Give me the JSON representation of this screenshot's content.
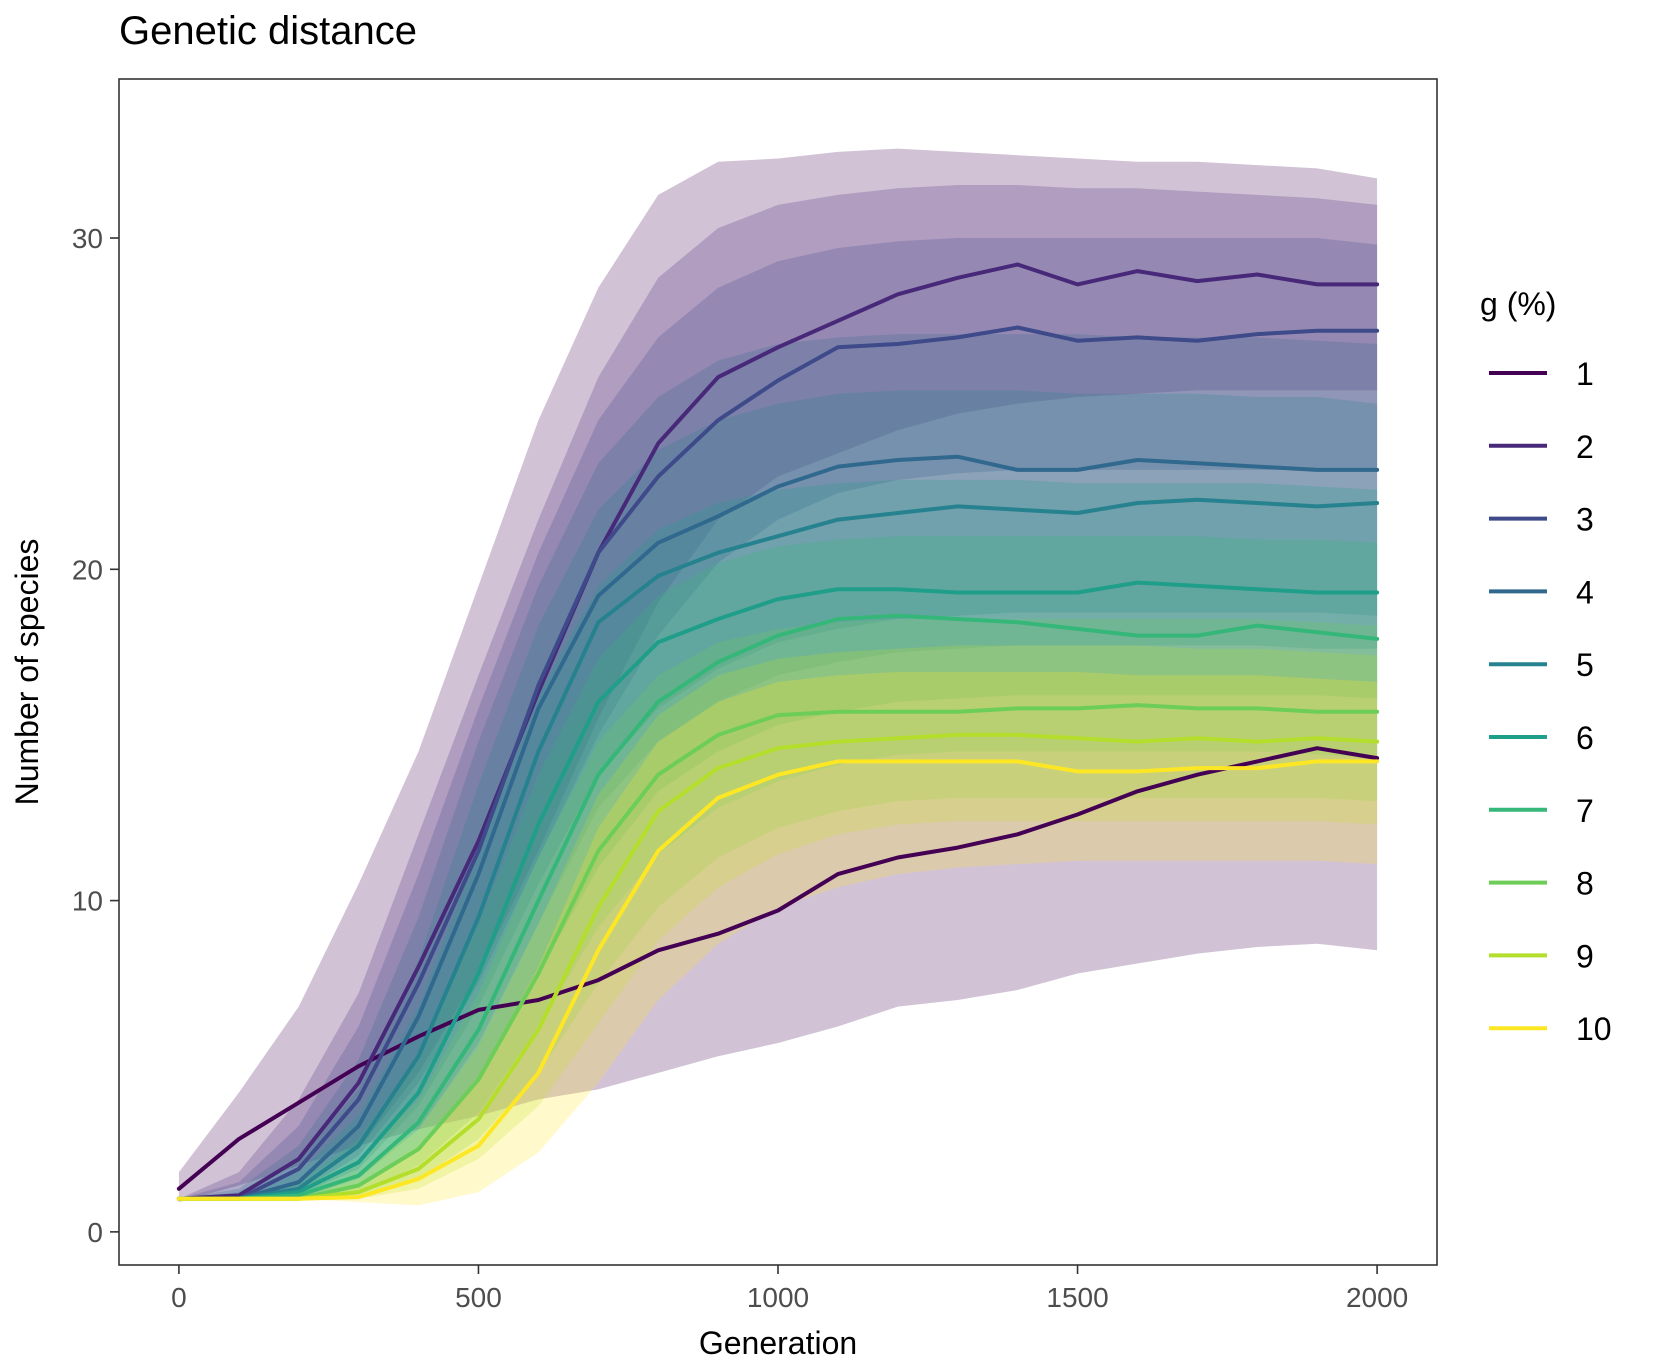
{
  "chart_data": {
    "type": "line",
    "title": "Genetic distance",
    "xlabel": "Generation",
    "ylabel": "Number of species",
    "xlim": [
      -100,
      2100
    ],
    "ylim": [
      -1,
      34.8
    ],
    "xticks": [
      0,
      500,
      1000,
      1500,
      2000
    ],
    "yticks": [
      0,
      10,
      20,
      30
    ],
    "legend": {
      "title": "g (%)",
      "position": "right"
    },
    "grid": false,
    "x": [
      0,
      100,
      200,
      300,
      400,
      500,
      600,
      700,
      800,
      900,
      1000,
      1100,
      1200,
      1300,
      1400,
      1500,
      1600,
      1700,
      1800,
      1900,
      2000
    ],
    "series": [
      {
        "name": "1",
        "color": "#440154",
        "values": [
          1.3,
          2.8,
          3.9,
          5.0,
          5.9,
          6.7,
          7.0,
          7.6,
          8.5,
          9.0,
          9.7,
          10.8,
          11.3,
          11.6,
          12.0,
          12.6,
          13.3,
          13.8,
          14.2,
          14.6,
          14.3
        ],
        "lower": [
          0.9,
          1.4,
          2.0,
          2.6,
          3.1,
          3.5,
          4.0,
          4.3,
          4.8,
          5.3,
          5.7,
          6.2,
          6.8,
          7.0,
          7.3,
          7.8,
          8.1,
          8.4,
          8.6,
          8.7,
          8.5
        ],
        "upper": [
          1.8,
          4.2,
          6.8,
          10.5,
          14.5,
          19.5,
          24.5,
          28.5,
          31.3,
          32.3,
          32.4,
          32.6,
          32.7,
          32.6,
          32.5,
          32.4,
          32.3,
          32.3,
          32.2,
          32.1,
          31.8
        ]
      },
      {
        "name": "2",
        "color": "#482878",
        "values": [
          1.0,
          1.1,
          2.2,
          4.5,
          8.0,
          11.8,
          16.3,
          20.5,
          23.8,
          25.8,
          26.7,
          27.5,
          28.3,
          28.8,
          29.2,
          28.6,
          29.0,
          28.7,
          28.9,
          28.6,
          28.6
        ],
        "lower": [
          1.0,
          1.0,
          1.3,
          2.5,
          4.8,
          7.8,
          11.5,
          15.5,
          19.0,
          21.5,
          22.8,
          23.5,
          24.2,
          24.7,
          25.0,
          25.2,
          25.3,
          25.4,
          25.4,
          25.4,
          25.4
        ],
        "upper": [
          1.0,
          1.8,
          4.0,
          7.2,
          12.0,
          16.8,
          21.5,
          25.8,
          28.8,
          30.3,
          31.0,
          31.3,
          31.5,
          31.6,
          31.6,
          31.5,
          31.5,
          31.4,
          31.3,
          31.2,
          31.0
        ]
      },
      {
        "name": "3",
        "color": "#3E4A89",
        "values": [
          1.0,
          1.0,
          1.9,
          4.0,
          7.5,
          11.5,
          16.5,
          20.5,
          22.8,
          24.5,
          25.7,
          26.7,
          26.8,
          27.0,
          27.3,
          26.9,
          27.0,
          26.9,
          27.1,
          27.2,
          27.2
        ],
        "lower": [
          1.0,
          1.0,
          1.2,
          2.3,
          4.5,
          7.5,
          11.3,
          15.0,
          18.0,
          20.2,
          21.5,
          22.3,
          22.7,
          22.9,
          23.0,
          23.0,
          23.0,
          23.0,
          23.0,
          23.0,
          23.0
        ],
        "upper": [
          1.0,
          1.5,
          3.2,
          6.2,
          10.8,
          15.8,
          20.5,
          24.5,
          27.0,
          28.5,
          29.3,
          29.7,
          29.9,
          30.0,
          30.0,
          30.0,
          30.0,
          30.0,
          30.0,
          30.0,
          29.8
        ]
      },
      {
        "name": "4",
        "color": "#31688E",
        "values": [
          1.0,
          1.0,
          1.5,
          3.2,
          6.5,
          10.8,
          15.8,
          19.2,
          20.8,
          21.6,
          22.5,
          23.1,
          23.3,
          23.4,
          23.0,
          23.0,
          23.3,
          23.2,
          23.1,
          23.0,
          23.0
        ],
        "lower": [
          1.0,
          1.0,
          1.1,
          1.9,
          3.8,
          6.8,
          10.5,
          13.8,
          15.8,
          17.0,
          17.8,
          18.2,
          18.5,
          18.6,
          18.7,
          18.7,
          18.7,
          18.7,
          18.7,
          18.7,
          18.6
        ],
        "upper": [
          1.0,
          1.3,
          2.6,
          5.2,
          9.5,
          14.8,
          19.5,
          23.2,
          25.2,
          26.3,
          26.8,
          27.0,
          27.1,
          27.1,
          27.1,
          27.1,
          27.0,
          27.0,
          27.0,
          26.9,
          26.8
        ]
      },
      {
        "name": "5",
        "color": "#26828E",
        "values": [
          1.0,
          1.0,
          1.3,
          2.6,
          5.3,
          9.5,
          14.5,
          18.4,
          19.8,
          20.5,
          21.0,
          21.5,
          21.7,
          21.9,
          21.8,
          21.7,
          22.0,
          22.1,
          22.0,
          21.9,
          22.0
        ],
        "lower": [
          1.0,
          1.0,
          1.0,
          1.6,
          3.1,
          5.7,
          9.3,
          12.8,
          14.8,
          16.0,
          16.8,
          17.2,
          17.5,
          17.6,
          17.7,
          17.7,
          17.7,
          17.7,
          17.7,
          17.6,
          17.6
        ],
        "upper": [
          1.0,
          1.2,
          2.2,
          4.3,
          8.2,
          13.5,
          18.3,
          21.8,
          23.6,
          24.5,
          25.0,
          25.3,
          25.4,
          25.4,
          25.4,
          25.3,
          25.3,
          25.3,
          25.2,
          25.2,
          25.0
        ]
      },
      {
        "name": "6",
        "color": "#1F9E89",
        "values": [
          1.0,
          1.0,
          1.2,
          2.1,
          4.2,
          7.8,
          12.3,
          16.0,
          17.8,
          18.5,
          19.1,
          19.4,
          19.4,
          19.3,
          19.3,
          19.3,
          19.6,
          19.5,
          19.4,
          19.3,
          19.3
        ],
        "lower": [
          1.0,
          1.0,
          1.0,
          1.4,
          2.5,
          4.6,
          7.8,
          11.0,
          13.3,
          14.5,
          15.3,
          15.7,
          16.0,
          16.1,
          16.2,
          16.2,
          16.2,
          16.2,
          16.2,
          16.2,
          16.1
        ],
        "upper": [
          1.0,
          1.1,
          1.8,
          3.5,
          6.8,
          11.5,
          16.2,
          19.5,
          21.2,
          22.0,
          22.4,
          22.6,
          22.7,
          22.7,
          22.7,
          22.6,
          22.6,
          22.6,
          22.6,
          22.5,
          22.4
        ]
      },
      {
        "name": "7",
        "color": "#35B779",
        "values": [
          1.0,
          1.0,
          1.1,
          1.7,
          3.3,
          6.1,
          10.0,
          13.8,
          16.0,
          17.2,
          18.0,
          18.5,
          18.6,
          18.5,
          18.4,
          18.2,
          18.0,
          18.0,
          18.3,
          18.1,
          17.9
        ],
        "lower": [
          1.0,
          1.0,
          1.0,
          1.2,
          2.0,
          3.6,
          6.2,
          9.2,
          11.4,
          12.8,
          13.6,
          14.1,
          14.4,
          14.5,
          14.5,
          14.5,
          14.5,
          14.5,
          14.5,
          14.4,
          14.3
        ],
        "upper": [
          1.0,
          1.1,
          1.5,
          2.8,
          5.3,
          9.3,
          13.8,
          17.3,
          19.2,
          20.2,
          20.7,
          20.9,
          21.0,
          21.0,
          21.0,
          21.0,
          21.0,
          21.0,
          20.9,
          20.9,
          20.8
        ]
      },
      {
        "name": "8",
        "color": "#6DCD59",
        "values": [
          1.0,
          1.0,
          1.0,
          1.4,
          2.5,
          4.6,
          7.8,
          11.5,
          13.8,
          15.0,
          15.6,
          15.7,
          15.7,
          15.7,
          15.8,
          15.8,
          15.9,
          15.8,
          15.8,
          15.7,
          15.7
        ],
        "lower": [
          1.0,
          1.0,
          1.0,
          1.1,
          1.6,
          2.8,
          4.8,
          7.5,
          9.8,
          11.3,
          12.2,
          12.7,
          13.0,
          13.1,
          13.1,
          13.1,
          13.1,
          13.1,
          13.1,
          13.1,
          13.0
        ],
        "upper": [
          1.0,
          1.0,
          1.3,
          2.2,
          4.0,
          7.2,
          11.3,
          14.8,
          16.8,
          17.8,
          18.2,
          18.4,
          18.5,
          18.5,
          18.5,
          18.5,
          18.5,
          18.5,
          18.5,
          18.4,
          18.3
        ]
      },
      {
        "name": "9",
        "color": "#B4DE2C",
        "values": [
          1.0,
          1.0,
          1.0,
          1.2,
          1.9,
          3.4,
          6.1,
          9.8,
          12.7,
          14.0,
          14.6,
          14.8,
          14.9,
          15.0,
          15.0,
          14.9,
          14.8,
          14.9,
          14.8,
          14.9,
          14.8
        ],
        "lower": [
          1.0,
          1.0,
          1.0,
          1.0,
          1.3,
          2.2,
          3.8,
          6.3,
          8.8,
          10.4,
          11.4,
          12.0,
          12.3,
          12.4,
          12.4,
          12.4,
          12.4,
          12.4,
          12.4,
          12.4,
          12.3
        ],
        "upper": [
          1.0,
          1.0,
          1.1,
          1.8,
          3.1,
          5.6,
          9.3,
          13.2,
          15.6,
          16.8,
          17.3,
          17.5,
          17.6,
          17.7,
          17.7,
          17.7,
          17.7,
          17.6,
          17.6,
          17.5,
          17.4
        ]
      },
      {
        "name": "10",
        "color": "#FDE725",
        "values": [
          1.0,
          1.0,
          1.0,
          1.05,
          1.6,
          2.6,
          4.8,
          8.5,
          11.5,
          13.1,
          13.8,
          14.2,
          14.2,
          14.2,
          14.2,
          13.9,
          13.9,
          14.0,
          14.0,
          14.2,
          14.2
        ],
        "lower": [
          1.0,
          1.0,
          1.0,
          0.9,
          0.8,
          1.2,
          2.4,
          4.5,
          7.0,
          8.7,
          9.8,
          10.4,
          10.8,
          11.0,
          11.1,
          11.2,
          11.2,
          11.2,
          11.2,
          11.2,
          11.1
        ],
        "upper": [
          1.0,
          1.0,
          1.0,
          1.4,
          2.6,
          4.6,
          8.0,
          12.2,
          14.8,
          16.0,
          16.6,
          16.8,
          16.9,
          16.9,
          16.9,
          16.9,
          16.8,
          16.8,
          16.8,
          16.7,
          16.6
        ]
      }
    ]
  }
}
